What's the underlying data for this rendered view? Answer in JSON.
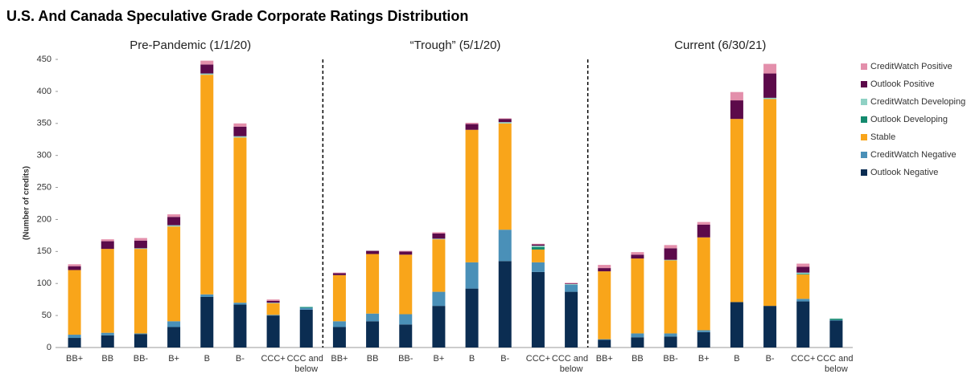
{
  "chart_data": {
    "type": "stacked_bar",
    "title": "U.S. And Canada Speculative Grade Corporate Ratings Distribution",
    "groups": [
      "Pre-Pandemic (1/1/20)",
      "“Trough” (5/1/20)",
      "Current (6/30/21)"
    ],
    "y_label": "(Number of credits)",
    "categories": [
      "BB+",
      "BB",
      "BB-",
      "B+",
      "B",
      "B-",
      "CCC+",
      "CCC and below",
      "BB+",
      "BB",
      "BB-",
      "B+",
      "B",
      "B-",
      "CCC+",
      "CCC and below",
      "BB+",
      "BB",
      "BB-",
      "B+",
      "B",
      "B-",
      "CCC+",
      "CCC and below"
    ],
    "ylim": [
      0,
      450
    ],
    "yticks": [
      0,
      50,
      100,
      150,
      200,
      250,
      300,
      350,
      400,
      450
    ],
    "series": [
      {
        "name": "Outlook Negative",
        "color": "#0b2d52",
        "values": [
          15,
          19,
          21,
          32,
          79,
          67,
          50,
          59,
          32,
          41,
          36,
          65,
          92,
          135,
          118,
          87,
          12,
          16,
          17,
          24,
          71,
          65,
          72,
          42
        ]
      },
      {
        "name": "CreditWatch Negative",
        "color": "#4a90b8",
        "values": [
          5,
          4,
          1,
          9,
          4,
          3,
          1,
          3,
          9,
          12,
          16,
          22,
          41,
          49,
          15,
          11,
          1,
          6,
          5,
          3,
          0,
          0,
          4,
          1
        ]
      },
      {
        "name": "Stable",
        "color": "#f9a51a",
        "values": [
          101,
          131,
          132,
          148,
          343,
          258,
          18,
          0,
          72,
          93,
          93,
          82,
          207,
          166,
          20,
          0,
          106,
          117,
          114,
          145,
          286,
          323,
          38,
          0
        ]
      },
      {
        "name": "Outlook Developing",
        "color": "#138a6e",
        "values": [
          0,
          0,
          0,
          0,
          0,
          0,
          0,
          1,
          0,
          0,
          0,
          0,
          0,
          0,
          4,
          0,
          0,
          0,
          0,
          0,
          0,
          0,
          1,
          2
        ]
      },
      {
        "name": "CreditWatch Developing",
        "color": "#8fd1c4",
        "values": [
          0,
          0,
          1,
          2,
          2,
          2,
          1,
          1,
          0,
          0,
          0,
          1,
          0,
          2,
          2,
          1,
          0,
          0,
          1,
          0,
          0,
          2,
          2,
          0
        ]
      },
      {
        "name": "Outlook Positive",
        "color": "#5c0a4a",
        "values": [
          6,
          12,
          12,
          13,
          14,
          15,
          3,
          0,
          3,
          5,
          5,
          8,
          9,
          5,
          2,
          1,
          5,
          6,
          18,
          20,
          29,
          38,
          9,
          0
        ]
      },
      {
        "name": "CreditWatch Positive",
        "color": "#e38fab",
        "values": [
          3,
          3,
          4,
          4,
          6,
          5,
          2,
          0,
          1,
          0,
          1,
          2,
          2,
          1,
          1,
          1,
          5,
          4,
          5,
          4,
          13,
          15,
          5,
          0
        ]
      }
    ]
  }
}
